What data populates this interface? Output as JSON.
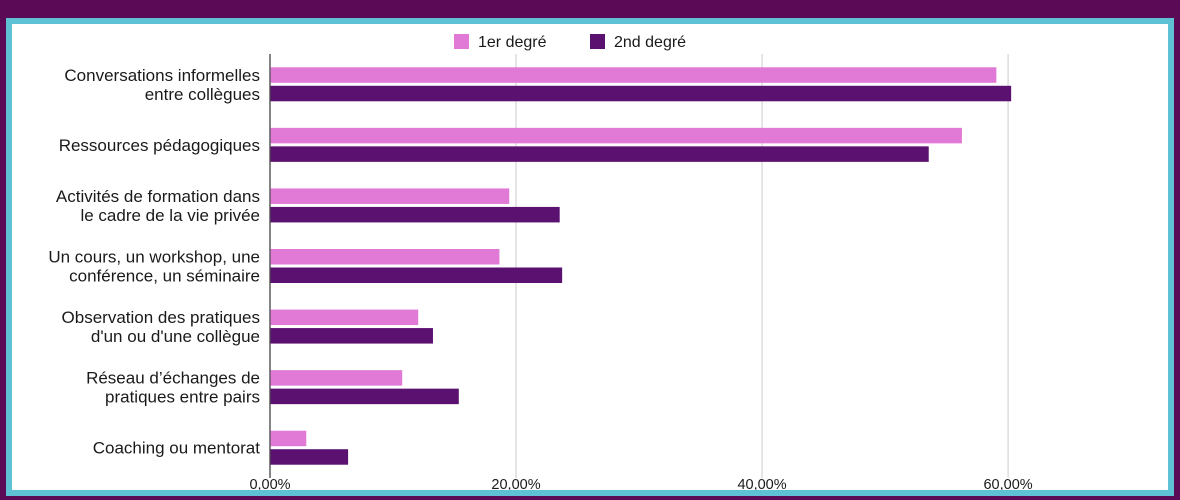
{
  "chart_data": {
    "type": "bar",
    "orientation": "horizontal",
    "categories": [
      [
        "Conversations informelles",
        "entre collègues"
      ],
      [
        "Ressources pédagogiques"
      ],
      [
        "Activités de formation dans",
        "le cadre de la vie privée"
      ],
      [
        "Un cours, un workshop, une",
        "conférence, un séminaire"
      ],
      [
        "Observation des pratiques",
        "d'un ou d'une collègue"
      ],
      [
        "Réseau d’échanges de",
        "pratiques entre pairs"
      ],
      [
        "Coaching ou mentorat"
      ]
    ],
    "series": [
      {
        "name": "1er degré",
        "color": "#e07ad6",
        "values": [
          59.0,
          56.2,
          19.4,
          18.6,
          12.0,
          10.7,
          2.9
        ]
      },
      {
        "name": "2nd degré",
        "color": "#5a1170",
        "values": [
          60.2,
          53.5,
          23.5,
          23.7,
          13.2,
          15.3,
          6.3
        ]
      }
    ],
    "x_ticks": [
      {
        "value": 0,
        "label": "0,00%"
      },
      {
        "value": 20,
        "label": "20,00%"
      },
      {
        "value": 40,
        "label": "40,00%"
      },
      {
        "value": 60,
        "label": "60,00%"
      }
    ],
    "xlim": [
      0,
      73
    ],
    "grid": true,
    "legend_position": "top"
  },
  "colors": {
    "background": "#5b0b55",
    "frame": "#5ec2d4",
    "panel": "#ffffff",
    "gridline": "#cccccc"
  }
}
